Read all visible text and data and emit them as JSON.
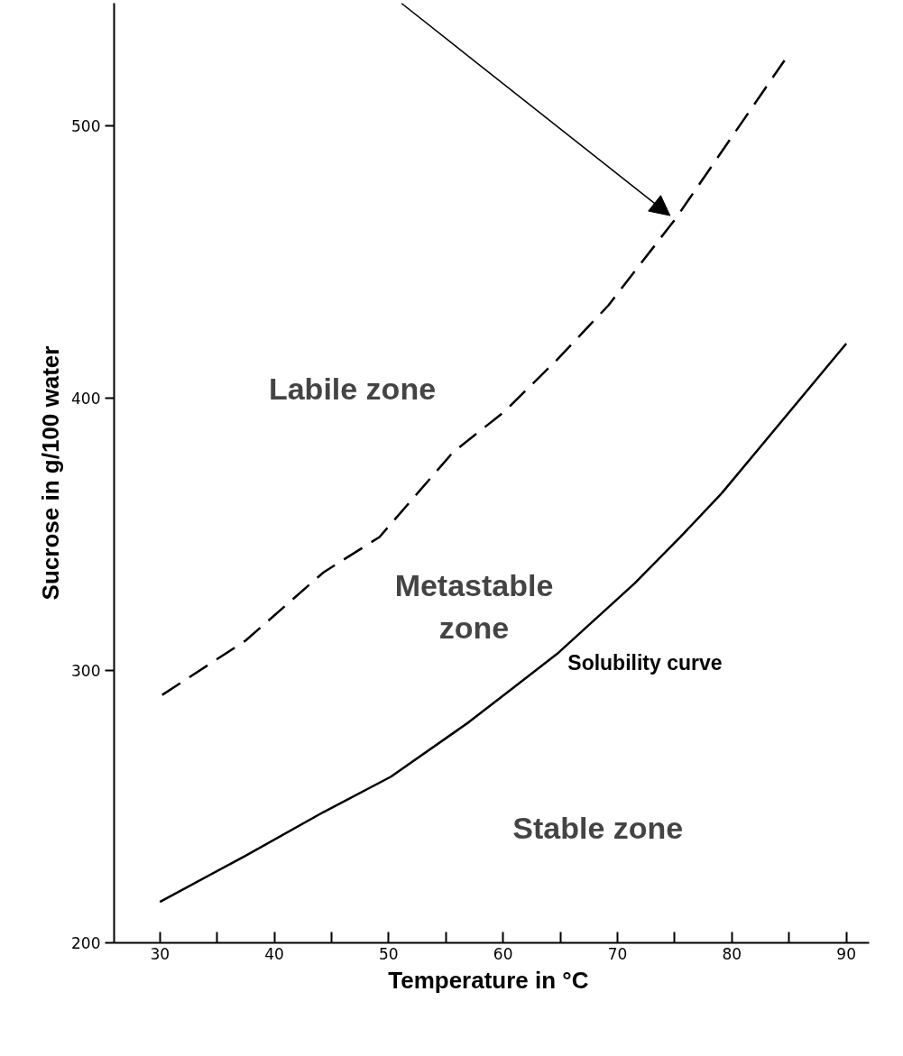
{
  "chart_data": {
    "type": "line",
    "xlabel": "Temperature  in °C",
    "ylabel": "Sucrose in g/100 water",
    "series": [
      {
        "color": "#000000",
        "line_style": "dashed",
        "x": [
          30.2,
          37.5,
          44.3,
          49.2,
          55.6,
          60.1,
          64.7,
          69.2,
          75.1,
          84.6
        ],
        "values": [
          291,
          311,
          336,
          349,
          380,
          395,
          414,
          434,
          466,
          524
        ]
      },
      {
        "name": "Solubility curve",
        "color": "#000000",
        "line_style": "solid",
        "x": [
          30,
          37.5,
          44.3,
          50.2,
          57,
          64.7,
          71.5,
          75.5,
          79.1,
          90
        ],
        "values": [
          215,
          232,
          248,
          261,
          281,
          306,
          332,
          349,
          365,
          420
        ]
      }
    ],
    "annotations": [
      "Labile zone",
      "Metastable\nzone",
      "Stable  zone"
    ],
    "xlim": [
      26,
      92
    ],
    "ylim": [
      200,
      545
    ],
    "xticks": [
      30,
      {
        "value": 35,
        "label": null
      },
      40,
      {
        "value": 45,
        "label": null
      },
      50,
      {
        "value": 55,
        "label": null
      },
      60,
      {
        "value": 65,
        "label": null
      },
      70,
      {
        "value": 75,
        "label": null
      },
      80,
      {
        "value": 85,
        "label": null
      },
      90
    ],
    "yticks": [
      200,
      300,
      400,
      500
    ],
    "grid": false,
    "legend": false,
    "marker": "none"
  }
}
